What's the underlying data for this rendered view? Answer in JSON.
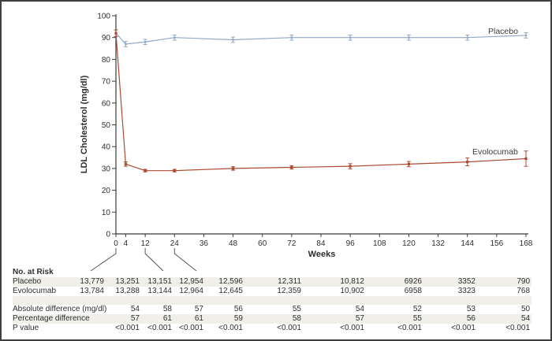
{
  "chart_data": {
    "type": "line",
    "title": "",
    "xlabel": "Weeks",
    "ylabel": "LDL Cholesterol (mg/dl)",
    "xlim": [
      0,
      168
    ],
    "ylim": [
      0,
      100
    ],
    "x_ticks": [
      0,
      4,
      12,
      24,
      36,
      48,
      60,
      72,
      84,
      96,
      108,
      120,
      132,
      144,
      156,
      168
    ],
    "y_ticks": [
      0,
      10,
      20,
      30,
      40,
      50,
      60,
      70,
      80,
      90,
      100
    ],
    "grid": false,
    "legend_position": "inline-labels-right",
    "x": [
      0,
      4,
      12,
      24,
      48,
      72,
      96,
      120,
      144,
      168
    ],
    "series": [
      {
        "name": "Placebo",
        "color": "#92a8c6",
        "values": [
          92,
          87,
          88,
          90,
          89,
          90,
          90,
          90,
          90,
          91
        ],
        "errors": [
          1.5,
          1.2,
          1.2,
          1.2,
          1.2,
          1.2,
          1.2,
          1.2,
          1.2,
          1.2
        ],
        "marker": "small-square"
      },
      {
        "name": "Evolocumab",
        "color": "#a94a31",
        "values": [
          92,
          32,
          29,
          29,
          30,
          30.5,
          31,
          32,
          33,
          34.5
        ],
        "errors": [
          1.5,
          1.0,
          0.6,
          0.6,
          0.8,
          0.8,
          1.2,
          1.2,
          1.8,
          3.5
        ],
        "marker": "square"
      }
    ],
    "axis_color": "#3a3a3a",
    "text_color": "#2e2e2e"
  },
  "risk_table": {
    "title": "No. at Risk",
    "columns_weeks": [
      0,
      4,
      12,
      24,
      48,
      72,
      96,
      120,
      144,
      168
    ],
    "rows": [
      {
        "label": "Placebo",
        "values": [
          "13,779",
          "13,251",
          "13,151",
          "12,954",
          "12,596",
          "12,311",
          "10,812",
          "6926",
          "3352",
          "790"
        ]
      },
      {
        "label": "Evolocumab",
        "values": [
          "13,784",
          "13,288",
          "13,144",
          "12,964",
          "12,645",
          "12,359",
          "10,902",
          "6958",
          "3323",
          "768"
        ]
      }
    ],
    "stats_rows": [
      {
        "label": "Absolute difference (mg/dl)",
        "values": [
          "",
          "54",
          "58",
          "57",
          "56",
          "55",
          "54",
          "52",
          "53",
          "50"
        ]
      },
      {
        "label": "Percentage difference",
        "values": [
          "",
          "57",
          "61",
          "61",
          "59",
          "58",
          "57",
          "55",
          "56",
          "54"
        ]
      },
      {
        "label": "P value",
        "values": [
          "",
          "<0.001",
          "<0.001",
          "<0.001",
          "<0.001",
          "<0.001",
          "<0.001",
          "<0.001",
          "<0.001",
          "<0.001"
        ]
      }
    ],
    "stripe_color": "#f0efea"
  }
}
